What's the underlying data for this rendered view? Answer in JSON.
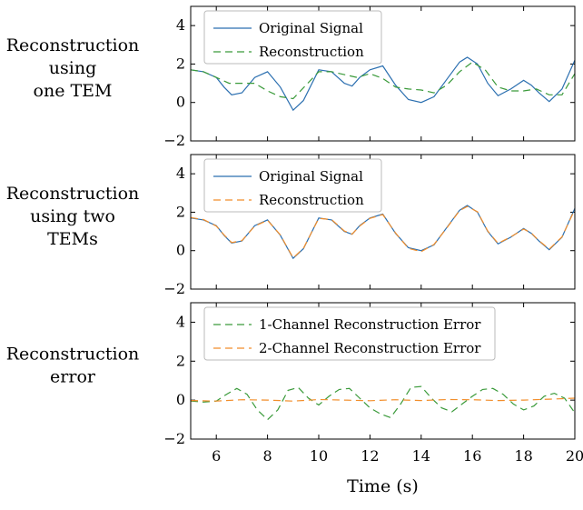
{
  "colors": {
    "original": "#2b6fb0",
    "one_tem": "#3a9a3a",
    "two_tem": "#f28e2b",
    "axis": "#000000",
    "legend_border": "#bbbbbb"
  },
  "chart_data": [
    {
      "type": "line",
      "row_label": [
        "Reconstruction",
        "using",
        "one TEM"
      ],
      "ylim": [
        -2,
        5
      ],
      "xlim": [
        5,
        20
      ],
      "yticks": [
        -2,
        0,
        2,
        4
      ],
      "legend_position": "top-left",
      "series": [
        {
          "name": "Original Signal",
          "style": "solid",
          "x": [
            5.0,
            5.5,
            6.0,
            6.3,
            6.6,
            7.0,
            7.5,
            8.0,
            8.5,
            9.0,
            9.4,
            10.0,
            10.5,
            11.0,
            11.3,
            11.6,
            12.0,
            12.5,
            13.0,
            13.5,
            14.0,
            14.5,
            15.0,
            15.5,
            15.8,
            16.2,
            16.6,
            17.0,
            17.5,
            18.0,
            18.3,
            18.6,
            19.0,
            19.5,
            20.0
          ],
          "y": [
            1.7,
            1.6,
            1.3,
            0.8,
            0.4,
            0.5,
            1.3,
            1.6,
            0.8,
            -0.4,
            0.1,
            1.7,
            1.6,
            1.0,
            0.85,
            1.3,
            1.7,
            1.9,
            0.9,
            0.15,
            0.0,
            0.3,
            1.2,
            2.1,
            2.35,
            2.0,
            1.0,
            0.35,
            0.7,
            1.15,
            0.9,
            0.5,
            0.05,
            0.7,
            2.2
          ]
        },
        {
          "name": "Reconstruction",
          "style": "dashed",
          "x": [
            5.0,
            5.5,
            6.0,
            6.5,
            7.0,
            7.5,
            8.0,
            8.5,
            9.0,
            9.5,
            10.0,
            10.5,
            11.0,
            11.5,
            12.0,
            12.5,
            13.0,
            13.5,
            14.0,
            14.5,
            15.0,
            15.5,
            16.0,
            16.5,
            17.0,
            17.5,
            18.0,
            18.5,
            19.0,
            19.5,
            20.0
          ],
          "y": [
            1.7,
            1.6,
            1.3,
            1.0,
            1.0,
            1.0,
            0.6,
            0.3,
            0.2,
            0.9,
            1.6,
            1.6,
            1.45,
            1.3,
            1.5,
            1.25,
            0.8,
            0.7,
            0.65,
            0.5,
            0.9,
            1.6,
            2.1,
            1.7,
            0.8,
            0.6,
            0.6,
            0.7,
            0.4,
            0.4,
            1.5
          ]
        }
      ]
    },
    {
      "type": "line",
      "row_label": [
        "Reconstruction",
        "using two",
        "TEMs"
      ],
      "ylim": [
        -2,
        5
      ],
      "xlim": [
        5,
        20
      ],
      "yticks": [
        -2,
        0,
        2,
        4
      ],
      "legend_position": "top-left",
      "series": [
        {
          "name": "Original Signal",
          "style": "solid",
          "x": [
            5.0,
            5.5,
            6.0,
            6.3,
            6.6,
            7.0,
            7.5,
            8.0,
            8.5,
            9.0,
            9.4,
            10.0,
            10.5,
            11.0,
            11.3,
            11.6,
            12.0,
            12.5,
            13.0,
            13.5,
            14.0,
            14.5,
            15.0,
            15.5,
            15.8,
            16.2,
            16.6,
            17.0,
            17.5,
            18.0,
            18.3,
            18.6,
            19.0,
            19.5,
            20.0
          ],
          "y": [
            1.7,
            1.6,
            1.3,
            0.8,
            0.4,
            0.5,
            1.3,
            1.6,
            0.8,
            -0.4,
            0.1,
            1.7,
            1.6,
            1.0,
            0.85,
            1.3,
            1.7,
            1.9,
            0.9,
            0.15,
            0.0,
            0.3,
            1.2,
            2.1,
            2.35,
            2.0,
            1.0,
            0.35,
            0.7,
            1.15,
            0.9,
            0.5,
            0.05,
            0.7,
            2.2
          ]
        },
        {
          "name": "Reconstruction",
          "style": "dashed",
          "x": [
            5.0,
            5.5,
            6.0,
            6.3,
            6.6,
            7.0,
            7.5,
            8.0,
            8.5,
            9.0,
            9.4,
            10.0,
            10.5,
            11.0,
            11.3,
            11.6,
            12.0,
            12.5,
            13.0,
            13.5,
            14.0,
            14.5,
            15.0,
            15.5,
            15.8,
            16.2,
            16.6,
            17.0,
            17.5,
            18.0,
            18.3,
            18.6,
            19.0,
            19.5,
            20.0
          ],
          "y": [
            1.72,
            1.62,
            1.28,
            0.82,
            0.42,
            0.52,
            1.28,
            1.58,
            0.82,
            -0.38,
            0.12,
            1.68,
            1.62,
            1.02,
            0.86,
            1.28,
            1.68,
            1.88,
            0.92,
            0.12,
            -0.05,
            0.32,
            1.18,
            2.08,
            2.3,
            2.02,
            1.02,
            0.38,
            0.72,
            1.12,
            0.92,
            0.52,
            0.08,
            0.72,
            2.15
          ]
        }
      ]
    },
    {
      "type": "line",
      "row_label": [
        "Reconstruction",
        "error"
      ],
      "ylim": [
        -2,
        5
      ],
      "xlim": [
        5,
        20
      ],
      "yticks": [
        -2,
        0,
        2,
        4
      ],
      "xticks": [
        6,
        8,
        10,
        12,
        14,
        16,
        18,
        20
      ],
      "xlabel": "Time (s)",
      "legend_position": "top-left",
      "series": [
        {
          "name": "1-Channel Reconstruction Error",
          "style": "dashed",
          "x": [
            5.0,
            5.5,
            6.0,
            6.4,
            6.8,
            7.2,
            7.6,
            8.0,
            8.4,
            8.8,
            9.2,
            9.6,
            10.0,
            10.4,
            10.8,
            11.2,
            11.6,
            12.0,
            12.4,
            12.8,
            13.2,
            13.6,
            14.0,
            14.4,
            14.8,
            15.2,
            15.6,
            16.0,
            16.4,
            16.8,
            17.2,
            17.6,
            18.0,
            18.4,
            18.8,
            19.2,
            19.6,
            20.0
          ],
          "y": [
            -0.05,
            -0.1,
            -0.05,
            0.3,
            0.6,
            0.3,
            -0.5,
            -1.0,
            -0.5,
            0.5,
            0.65,
            0.1,
            -0.25,
            0.2,
            0.55,
            0.6,
            0.1,
            -0.4,
            -0.7,
            -0.9,
            -0.2,
            0.65,
            0.7,
            0.1,
            -0.4,
            -0.6,
            -0.2,
            0.2,
            0.55,
            0.6,
            0.3,
            -0.2,
            -0.5,
            -0.3,
            0.2,
            0.35,
            0.1,
            -0.65
          ]
        },
        {
          "name": "2-Channel Reconstruction Error",
          "style": "dashed",
          "x": [
            5.0,
            6.0,
            7.0,
            8.0,
            9.0,
            10.0,
            11.0,
            12.0,
            13.0,
            14.0,
            15.0,
            16.0,
            17.0,
            18.0,
            19.0,
            20.0
          ],
          "y": [
            -0.02,
            -0.05,
            0.02,
            0.0,
            -0.05,
            0.03,
            0.0,
            -0.03,
            0.02,
            -0.02,
            0.03,
            0.02,
            -0.02,
            0.0,
            0.05,
            0.1
          ]
        }
      ]
    }
  ]
}
